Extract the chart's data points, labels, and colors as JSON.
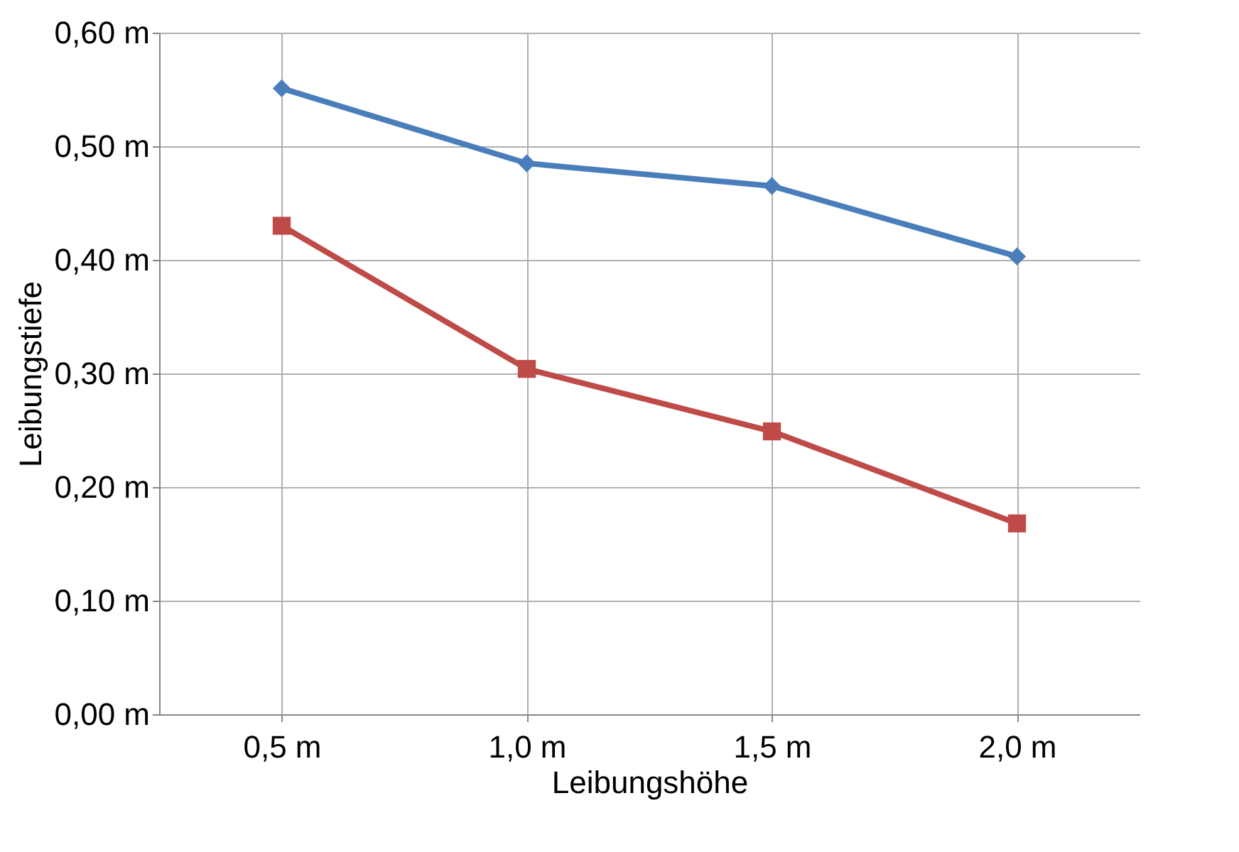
{
  "chart_data": {
    "type": "line",
    "xlabel": "Leibungshöhe",
    "ylabel": "Leibungstiefe",
    "categories": [
      "0,5 m",
      "1,0 m",
      "1,5 m",
      "2,0 m"
    ],
    "series": [
      {
        "color": "#4a7ebb",
        "marker": "diamond",
        "values": [
          0.551,
          0.485,
          0.465,
          0.403
        ]
      },
      {
        "color": "#be4b48",
        "marker": "square",
        "values": [
          0.43,
          0.304,
          0.249,
          0.168
        ]
      }
    ],
    "ylim": [
      0,
      0.6
    ],
    "yticks": [
      {
        "value": 0,
        "label": "0,00 m"
      },
      {
        "value": 0.1,
        "label": "0,10 m"
      },
      {
        "value": 0.2,
        "label": "0,20 m"
      },
      {
        "value": 0.3,
        "label": "0,30 m"
      },
      {
        "value": 0.4,
        "label": "0,40 m"
      },
      {
        "value": 0.5,
        "label": "0,50 m"
      },
      {
        "value": 0.6,
        "label": "0,60 m"
      }
    ],
    "grid": true,
    "line_style": "solid"
  }
}
